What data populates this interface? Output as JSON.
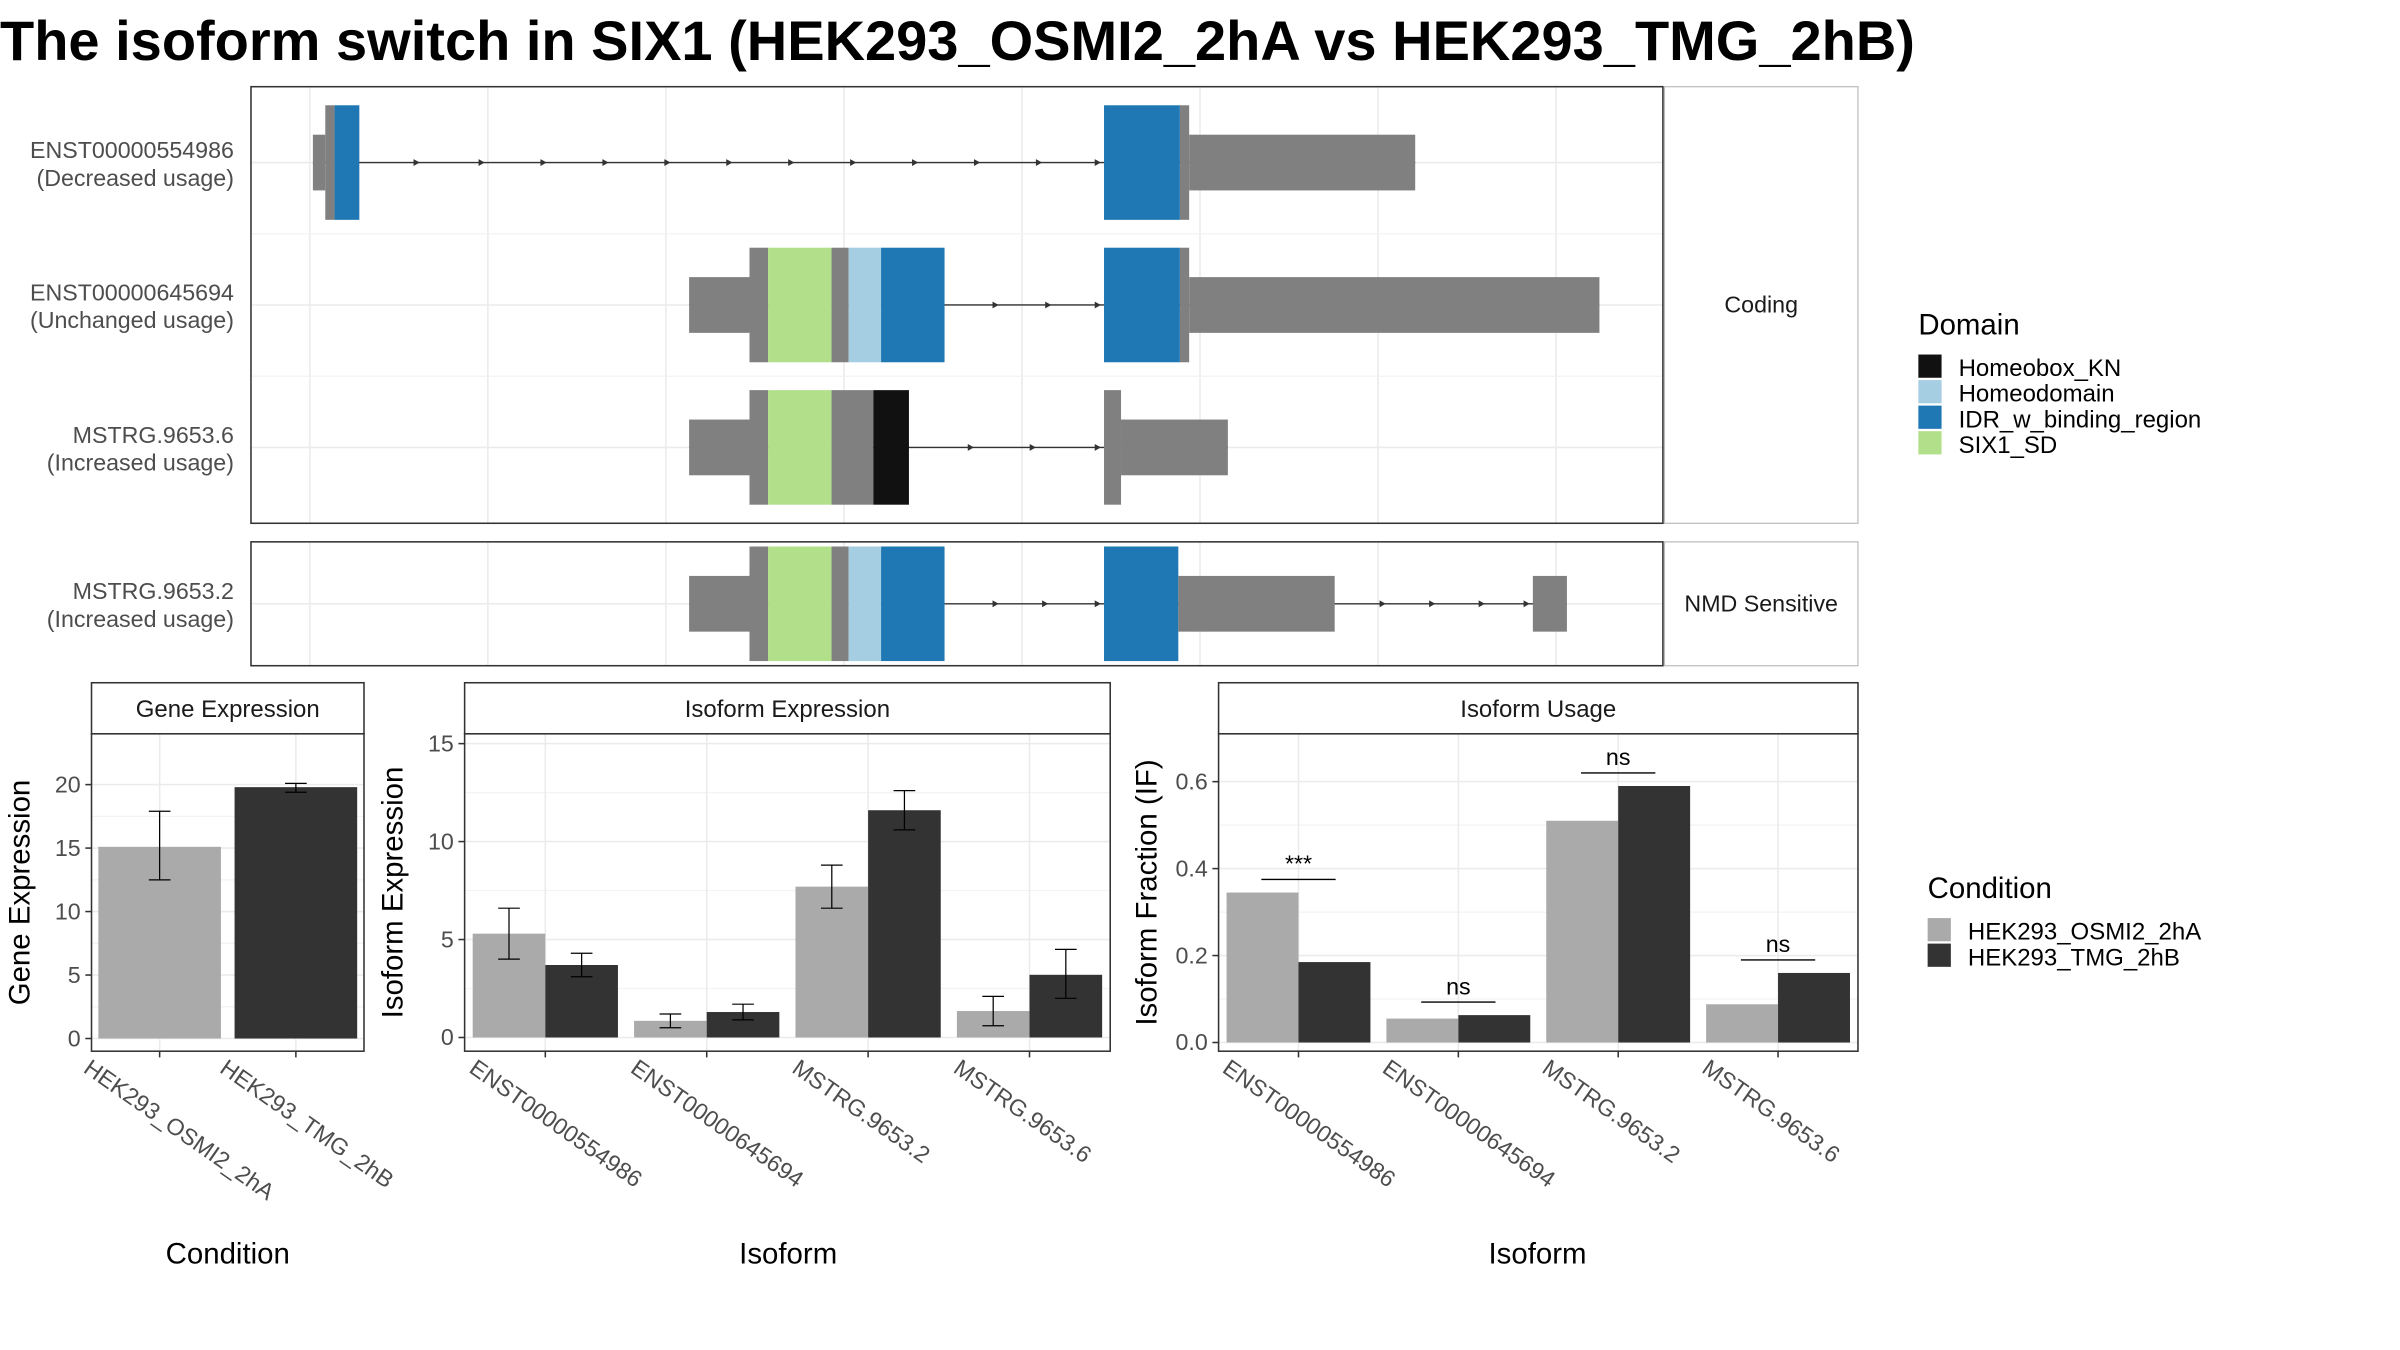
{
  "title": "The isoform switch in SIX1 (HEK293_OSMI2_2hA vs HEK293_TMG_2hB)",
  "colors": {
    "intron": "#333333",
    "exon": "#808080",
    "condition_a": "#aaaaaa",
    "condition_b": "#333333",
    "grid": "#ebebeb",
    "strip": "#ffffff"
  },
  "chart_data": [
    {
      "type": "transcript_structure",
      "facets": [
        {
          "label": "Coding",
          "rows": [
            0,
            1,
            2
          ]
        },
        {
          "label": "NMD Sensitive",
          "rows": [
            3
          ]
        }
      ],
      "transcripts": [
        {
          "id": "ENST00000554986",
          "usage": "(Decreased usage)",
          "exons": [
            {
              "start": 202,
              "end": 210,
              "type": "utr"
            },
            {
              "start": 210,
              "end": 232,
              "type": "cds",
              "domain": "IDR_w_binding_region",
              "pad_left": 6
            },
            {
              "start": 713,
              "end": 768,
              "type": "cds",
              "domain": "IDR_w_binding_region",
              "pad_right": 6
            },
            {
              "start": 768,
              "end": 914,
              "type": "utr"
            }
          ],
          "arrows": [
            270,
            312,
            352,
            392,
            432,
            472,
            512,
            552,
            592,
            632,
            672,
            710
          ]
        },
        {
          "id": "ENST00000645694",
          "usage": "(Unchanged usage)",
          "exons": [
            {
              "start": 445,
              "end": 484,
              "type": "utr"
            },
            {
              "start": 484,
              "end": 610,
              "type": "cds",
              "segments": [
                {
                  "start": 484,
                  "end": 496,
                  "domain": null
                },
                {
                  "start": 496,
                  "end": 537,
                  "domain": "SIX1_SD"
                },
                {
                  "start": 537,
                  "end": 548,
                  "domain": null
                },
                {
                  "start": 548,
                  "end": 569,
                  "domain": "Homeodomain"
                },
                {
                  "start": 569,
                  "end": 610,
                  "domain": "IDR_w_binding_region"
                }
              ]
            },
            {
              "start": 713,
              "end": 768,
              "type": "cds",
              "domain": "IDR_w_binding_region",
              "pad_right": 6
            },
            {
              "start": 768,
              "end": 1033,
              "type": "utr"
            }
          ],
          "arrows": [
            644,
            678,
            710
          ]
        },
        {
          "id": "MSTRG.9653.6",
          "usage": "(Increased usage)",
          "exons": [
            {
              "start": 445,
              "end": 484,
              "type": "utr"
            },
            {
              "start": 484,
              "end": 587,
              "type": "cds",
              "segments": [
                {
                  "start": 484,
                  "end": 496,
                  "domain": null
                },
                {
                  "start": 496,
                  "end": 537,
                  "domain": "SIX1_SD"
                },
                {
                  "start": 537,
                  "end": 564,
                  "domain": null
                },
                {
                  "start": 564,
                  "end": 587,
                  "domain": "Homeobox_KN"
                }
              ]
            },
            {
              "start": 713,
              "end": 724,
              "type": "cds",
              "domain": null
            },
            {
              "start": 724,
              "end": 793,
              "type": "utr"
            }
          ],
          "arrows": [
            628,
            668,
            710
          ]
        },
        {
          "id": "MSTRG.9653.2",
          "usage": "(Increased usage)",
          "exons": [
            {
              "start": 445,
              "end": 484,
              "type": "utr"
            },
            {
              "start": 484,
              "end": 610,
              "type": "cds",
              "segments": [
                {
                  "start": 484,
                  "end": 496,
                  "domain": null
                },
                {
                  "start": 496,
                  "end": 537,
                  "domain": "SIX1_SD"
                },
                {
                  "start": 537,
                  "end": 548,
                  "domain": null
                },
                {
                  "start": 548,
                  "end": 569,
                  "domain": "Homeodomain"
                },
                {
                  "start": 569,
                  "end": 610,
                  "domain": "IDR_w_binding_region"
                }
              ]
            },
            {
              "start": 713,
              "end": 761,
              "type": "cds",
              "domain": "IDR_w_binding_region"
            },
            {
              "start": 761,
              "end": 862,
              "type": "utr"
            },
            {
              "start": 990,
              "end": 1012,
              "type": "utr"
            }
          ],
          "arrows": [
            644,
            676,
            710,
            894,
            926,
            958,
            987
          ]
        }
      ],
      "domain_legend": {
        "title": "Domain",
        "items": [
          {
            "name": "Homeobox_KN",
            "color": "#111111"
          },
          {
            "name": "Homeodomain",
            "color": "#a6cee3"
          },
          {
            "name": "IDR_w_binding_region",
            "color": "#1f78b4"
          },
          {
            "name": "SIX1_SD",
            "color": "#b2df8a"
          }
        ]
      }
    },
    {
      "type": "bar",
      "panel_title": "Gene Expression",
      "xlabel": "Condition",
      "ylabel": "Gene Expression",
      "ylim": [
        -1,
        24
      ],
      "yticks": [
        0,
        5,
        10,
        15,
        20
      ],
      "categories": [
        "HEK293_OSMI2_2hA",
        "HEK293_TMG_2hB"
      ],
      "series": [
        {
          "name": "HEK293_OSMI2_2hA",
          "values": [
            15.1,
            null
          ],
          "err_low": [
            12.5,
            null
          ],
          "err_high": [
            17.9,
            null
          ]
        },
        {
          "name": "HEK293_TMG_2hB",
          "values": [
            null,
            19.8
          ],
          "err_low": [
            null,
            19.4
          ],
          "err_high": [
            null,
            20.1
          ]
        }
      ]
    },
    {
      "type": "bar",
      "panel_title": "Isoform Expression",
      "xlabel": "Isoform",
      "ylabel": "Isoform Expression",
      "ylim": [
        -0.7,
        15.5
      ],
      "yticks": [
        0,
        5,
        10,
        15
      ],
      "categories": [
        "ENST00000554986",
        "ENST00000645694",
        "MSTRG.9653.2",
        "MSTRG.9653.6"
      ],
      "series": [
        {
          "name": "HEK293_OSMI2_2hA",
          "values": [
            5.3,
            0.85,
            7.7,
            1.35
          ],
          "err_low": [
            4.0,
            0.5,
            6.6,
            0.6
          ],
          "err_high": [
            6.6,
            1.2,
            8.8,
            2.1
          ]
        },
        {
          "name": "HEK293_TMG_2hB",
          "values": [
            3.7,
            1.3,
            11.6,
            3.2
          ],
          "err_low": [
            3.1,
            0.9,
            10.6,
            2.0
          ],
          "err_high": [
            4.3,
            1.7,
            12.6,
            4.5
          ]
        }
      ]
    },
    {
      "type": "bar",
      "panel_title": "Isoform Usage",
      "xlabel": "Isoform",
      "ylabel": "Isoform Fraction (IF)",
      "ylim": [
        -0.02,
        0.71
      ],
      "yticks": [
        0.0,
        0.2,
        0.4,
        0.6
      ],
      "ytick_labels": [
        "0.0",
        "0.2",
        "0.4",
        "0.6"
      ],
      "categories": [
        "ENST00000554986",
        "ENST00000645694",
        "MSTRG.9653.2",
        "MSTRG.9653.6"
      ],
      "series": [
        {
          "name": "HEK293_OSMI2_2hA",
          "values": [
            0.345,
            0.055,
            0.51,
            0.088
          ]
        },
        {
          "name": "HEK293_TMG_2hB",
          "values": [
            0.185,
            0.063,
            0.59,
            0.16
          ]
        }
      ],
      "significance": [
        {
          "label": "***",
          "y": 0.375
        },
        {
          "label": "ns",
          "y": 0.093
        },
        {
          "label": "ns",
          "y": 0.62
        },
        {
          "label": "ns",
          "y": 0.19
        }
      ]
    }
  ],
  "condition_legend": {
    "title": "Condition",
    "items": [
      {
        "name": "HEK293_OSMI2_2hA",
        "color": "#aaaaaa"
      },
      {
        "name": "HEK293_TMG_2hB",
        "color": "#333333"
      }
    ]
  }
}
